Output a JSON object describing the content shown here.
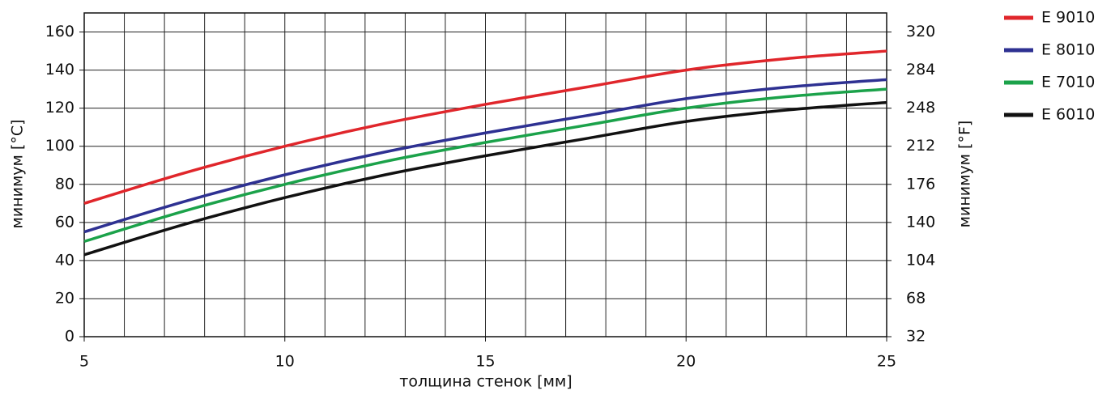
{
  "chart_data": {
    "type": "line",
    "x_label": "толщина стенок [мм]",
    "y_label": "минимум [°C]",
    "y2_label": "минимум [°F]",
    "x": [
      5,
      7.5,
      10,
      12.5,
      15,
      17.5,
      20,
      22.5,
      25
    ],
    "series": [
      {
        "name": "E 9010",
        "color": "#e0262b",
        "values": [
          70,
          86,
          100,
          112,
          122,
          131,
          140,
          146,
          150
        ]
      },
      {
        "name": "E 8010",
        "color": "#2e3192",
        "values": [
          55,
          71,
          85,
          97,
          107,
          116,
          125,
          131,
          135
        ]
      },
      {
        "name": "E 7010",
        "color": "#1ba24a",
        "values": [
          50,
          66,
          80,
          92,
          102,
          111,
          120,
          126,
          130
        ]
      },
      {
        "name": "E 6010",
        "color": "#111111",
        "values": [
          43,
          59,
          73,
          85,
          95,
          104,
          113,
          119,
          123
        ]
      }
    ],
    "xlim": [
      5,
      25
    ],
    "xticks": [
      5,
      10,
      15,
      20,
      25
    ],
    "x_gridlines": [
      5,
      6,
      7,
      8,
      9,
      10,
      11,
      12,
      13,
      14,
      15,
      16,
      17,
      18,
      19,
      20,
      21,
      22,
      23,
      24,
      25
    ],
    "ylim": [
      0,
      170
    ],
    "yticks": [
      0,
      20,
      40,
      60,
      80,
      100,
      120,
      140,
      160
    ],
    "y2lim": [
      32,
      338
    ],
    "y2ticks": [
      32,
      68,
      104,
      140,
      176,
      212,
      248,
      284,
      320
    ],
    "grid": true,
    "legend": "right"
  }
}
